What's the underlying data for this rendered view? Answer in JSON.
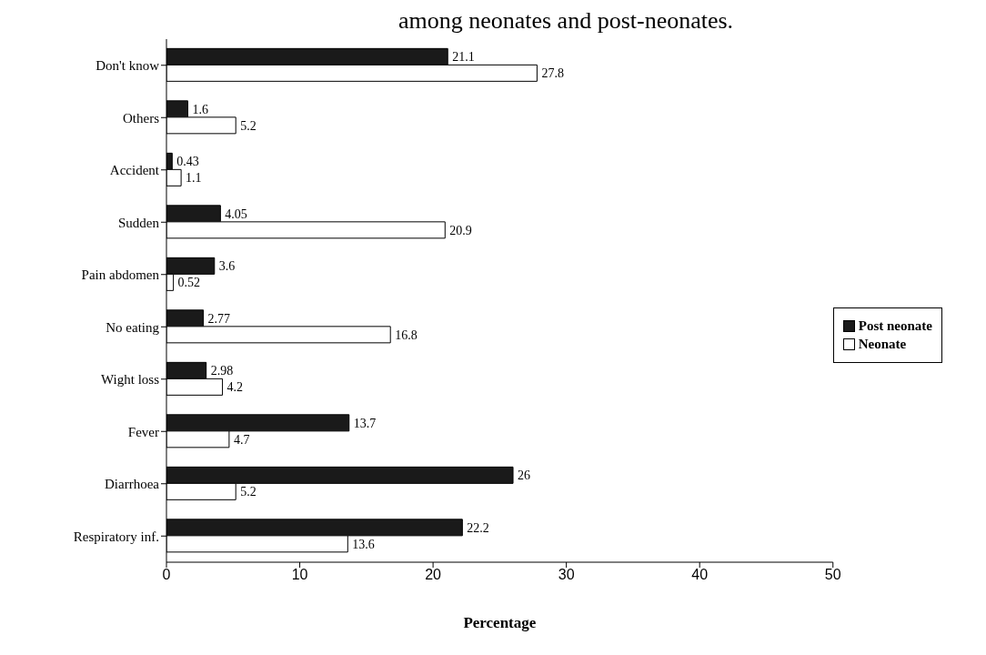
{
  "chart_data": {
    "type": "bar",
    "orientation": "horizontal",
    "title": "among neonates and post-neonates.",
    "xlabel": "Percentage",
    "categories": [
      "Don't know",
      "Others",
      "Accident",
      "Sudden",
      "Pain abdomen",
      "No eating",
      "Wight loss",
      "Fever",
      "Diarrhoea",
      "Respiratory inf."
    ],
    "series": [
      {
        "name": "Post neonate",
        "color": "#1a1a1a",
        "values": [
          21.1,
          1.6,
          0.43,
          4.05,
          3.6,
          2.77,
          2.98,
          13.7,
          26,
          22.2
        ]
      },
      {
        "name": "Neonate",
        "color": "#ffffff",
        "values": [
          27.8,
          5.2,
          1.1,
          20.9,
          0.52,
          16.8,
          4.2,
          4.7,
          5.2,
          13.6
        ]
      }
    ],
    "xlim": [
      0,
      50
    ],
    "xticks": [
      0,
      10,
      20,
      30,
      40,
      50
    ],
    "data_labels": true,
    "legend": "right",
    "grid": false
  }
}
